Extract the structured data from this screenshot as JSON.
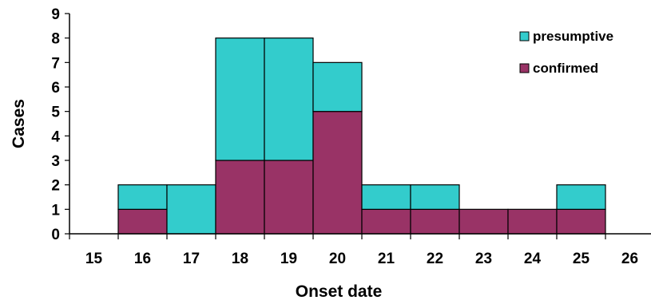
{
  "chart_data": {
    "type": "bar",
    "stacked": true,
    "title": "",
    "xlabel": "Onset date",
    "ylabel": "Cases",
    "categories": [
      "15",
      "16",
      "17",
      "18",
      "19",
      "20",
      "21",
      "22",
      "23",
      "24",
      "25",
      "26"
    ],
    "ylim": [
      0,
      9
    ],
    "yticks": [
      0,
      1,
      2,
      3,
      4,
      5,
      6,
      7,
      8,
      9
    ],
    "grid": false,
    "legend_position": "top-right",
    "series": [
      {
        "name": "confirmed",
        "color": "#993366",
        "values": [
          0,
          1,
          0,
          3,
          3,
          5,
          1,
          1,
          1,
          1,
          1,
          0
        ]
      },
      {
        "name": "presumptive",
        "color": "#33CCCC",
        "values": [
          0,
          1,
          2,
          5,
          5,
          2,
          1,
          1,
          0,
          0,
          1,
          0
        ]
      }
    ],
    "legend_order": [
      "presumptive",
      "confirmed"
    ]
  }
}
